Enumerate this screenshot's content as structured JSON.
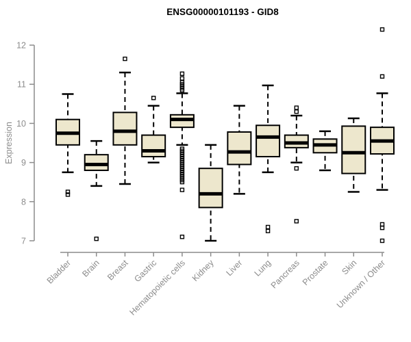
{
  "figure": {
    "background": "#ffffff"
  },
  "chart_data": {
    "type": "boxplot",
    "title": "ENSG00000101193 - GID8",
    "xlabel": "",
    "ylabel": "Expression",
    "ylim": [
      7,
      12
    ],
    "yticks": [
      7,
      8,
      9,
      10,
      11,
      12
    ],
    "grid": false,
    "legend": false,
    "categories": [
      "Bladder",
      "Brain",
      "Breast",
      "Gastric",
      "Hematopoietic cells",
      "Kidney",
      "Liver",
      "Lung",
      "Pancreas",
      "Prostate",
      "Skin",
      "Unknown / Other"
    ],
    "series": [
      {
        "category": "Bladder",
        "whisker_low": 8.75,
        "q1": 9.45,
        "median": 9.75,
        "q3": 10.1,
        "whisker_high": 10.75,
        "outliers": [
          8.25,
          8.18
        ]
      },
      {
        "category": "Brain",
        "whisker_low": 8.4,
        "q1": 8.8,
        "median": 8.95,
        "q3": 9.2,
        "whisker_high": 9.55,
        "outliers": [
          7.05
        ]
      },
      {
        "category": "Breast",
        "whisker_low": 8.45,
        "q1": 9.45,
        "median": 9.8,
        "q3": 10.28,
        "whisker_high": 11.3,
        "outliers": [
          11.65
        ]
      },
      {
        "category": "Gastric",
        "whisker_low": 9.0,
        "q1": 9.15,
        "median": 9.3,
        "q3": 9.7,
        "whisker_high": 10.45,
        "outliers": [
          10.65
        ]
      },
      {
        "category": "Hematopoietic cells",
        "whisker_low": 9.45,
        "q1": 9.9,
        "median": 10.1,
        "q3": 10.22,
        "whisker_high": 10.77,
        "outliers": [
          11.27,
          11.15,
          11.05,
          11.0,
          10.95,
          10.9,
          10.85,
          9.35,
          9.3,
          9.25,
          9.2,
          9.15,
          9.1,
          9.05,
          9.0,
          8.95,
          8.9,
          8.85,
          8.8,
          8.75,
          8.7,
          8.65,
          8.6,
          8.55,
          8.5,
          8.3,
          7.1
        ]
      },
      {
        "category": "Kidney",
        "whisker_low": 7.0,
        "q1": 7.85,
        "median": 8.2,
        "q3": 8.85,
        "whisker_high": 9.45,
        "outliers": []
      },
      {
        "category": "Liver",
        "whisker_low": 8.2,
        "q1": 8.95,
        "median": 9.27,
        "q3": 9.78,
        "whisker_high": 10.45,
        "outliers": []
      },
      {
        "category": "Lung",
        "whisker_low": 8.75,
        "q1": 9.15,
        "median": 9.65,
        "q3": 9.95,
        "whisker_high": 10.97,
        "outliers": [
          7.35,
          7.25
        ]
      },
      {
        "category": "Pancreas",
        "whisker_low": 9.0,
        "q1": 9.38,
        "median": 9.5,
        "q3": 9.7,
        "whisker_high": 10.2,
        "outliers": [
          10.4,
          10.3,
          8.85,
          7.5
        ]
      },
      {
        "category": "Prostate",
        "whisker_low": 8.8,
        "q1": 9.25,
        "median": 9.45,
        "q3": 9.6,
        "whisker_high": 9.8,
        "outliers": []
      },
      {
        "category": "Skin",
        "whisker_low": 8.25,
        "q1": 8.72,
        "median": 9.25,
        "q3": 9.93,
        "whisker_high": 10.13,
        "outliers": []
      },
      {
        "category": "Unknown / Other",
        "whisker_low": 8.3,
        "q1": 9.22,
        "median": 9.55,
        "q3": 9.9,
        "whisker_high": 10.77,
        "outliers": [
          12.4,
          11.2,
          7.42,
          7.33,
          7.0
        ]
      }
    ],
    "colors": {
      "box_fill": "#EDE7CD",
      "box_border": "#000000",
      "median": "#000000",
      "whisker": "#000000",
      "outlier": "#000000",
      "axis": "#8c8c8c",
      "tick_label": "#8c8c8c",
      "title": "#000000"
    }
  }
}
